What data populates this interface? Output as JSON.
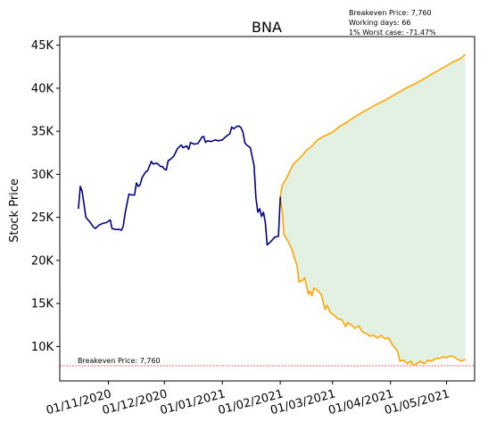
{
  "chart_data": {
    "type": "line",
    "title": "BNA",
    "ylabel": "Stock Price",
    "xlabel": "",
    "annotation_lines": [
      "Breakeven Price: 7,760",
      "Working days: 66",
      "1% Worst case: -71.47%"
    ],
    "breakeven": {
      "value": 7760,
      "label": "Breakeven Price: 7,760",
      "color": "#dd3333"
    },
    "ylim": [
      6000,
      46000
    ],
    "y_ticks": [
      {
        "value": 10000,
        "label": "10K"
      },
      {
        "value": 15000,
        "label": "15K"
      },
      {
        "value": 20000,
        "label": "20K"
      },
      {
        "value": 25000,
        "label": "25K"
      },
      {
        "value": 30000,
        "label": "30K"
      },
      {
        "value": 35000,
        "label": "35K"
      },
      {
        "value": 40000,
        "label": "40K"
      },
      {
        "value": 45000,
        "label": "45K"
      }
    ],
    "xlim": [
      "2020-10-06",
      "2021-05-16"
    ],
    "x_ticks": [
      {
        "value": "2020-11-01",
        "label": "01/11/2020"
      },
      {
        "value": "2020-12-01",
        "label": "01/12/2020"
      },
      {
        "value": "2021-01-01",
        "label": "01/01/2021"
      },
      {
        "value": "2021-02-01",
        "label": "01/02/2021"
      },
      {
        "value": "2021-03-01",
        "label": "01/03/2021"
      },
      {
        "value": "2021-04-01",
        "label": "01/04/2021"
      },
      {
        "value": "2021-05-01",
        "label": "01/05/2021"
      }
    ],
    "colors": {
      "history": "#00008b",
      "forecast": "#ffa500",
      "band_fill": "#d9ecd9"
    },
    "series": [
      {
        "role": "history",
        "points": [
          [
            "2020-10-16",
            26000
          ],
          [
            "2020-10-17",
            28600
          ],
          [
            "2020-10-18",
            28000
          ],
          [
            "2020-10-20",
            25000
          ],
          [
            "2020-10-22",
            24500
          ],
          [
            "2020-10-24",
            23900
          ],
          [
            "2020-10-25",
            23700
          ],
          [
            "2020-10-27",
            24100
          ],
          [
            "2020-10-29",
            24300
          ],
          [
            "2020-10-31",
            24400
          ],
          [
            "2020-11-02",
            24700
          ],
          [
            "2020-11-03",
            23700
          ],
          [
            "2020-11-05",
            23600
          ],
          [
            "2020-11-07",
            23600
          ],
          [
            "2020-11-08",
            23500
          ],
          [
            "2020-11-09",
            24000
          ],
          [
            "2020-11-10",
            25500
          ],
          [
            "2020-11-12",
            27700
          ],
          [
            "2020-11-14",
            27600
          ],
          [
            "2020-11-15",
            27600
          ],
          [
            "2020-11-16",
            29000
          ],
          [
            "2020-11-17",
            28600
          ],
          [
            "2020-11-18",
            28800
          ],
          [
            "2020-11-19",
            29600
          ],
          [
            "2020-11-21",
            30300
          ],
          [
            "2020-11-22",
            30400
          ],
          [
            "2020-11-24",
            31500
          ],
          [
            "2020-11-25",
            31200
          ],
          [
            "2020-11-27",
            31300
          ],
          [
            "2020-11-29",
            30900
          ],
          [
            "2020-11-30",
            30900
          ],
          [
            "2020-12-01",
            30600
          ],
          [
            "2020-12-02",
            30500
          ],
          [
            "2020-12-03",
            31600
          ],
          [
            "2020-12-04",
            31700
          ],
          [
            "2020-12-06",
            32100
          ],
          [
            "2020-12-08",
            33000
          ],
          [
            "2020-12-10",
            33400
          ],
          [
            "2020-12-11",
            33100
          ],
          [
            "2020-12-13",
            33300
          ],
          [
            "2020-12-14",
            32900
          ],
          [
            "2020-12-15",
            33700
          ],
          [
            "2020-12-17",
            33500
          ],
          [
            "2020-12-19",
            33600
          ],
          [
            "2020-12-21",
            34300
          ],
          [
            "2020-12-22",
            34400
          ],
          [
            "2020-12-23",
            33700
          ],
          [
            "2020-12-24",
            33900
          ],
          [
            "2020-12-26",
            33800
          ],
          [
            "2020-12-28",
            34000
          ],
          [
            "2020-12-30",
            33900
          ],
          [
            "2021-01-01",
            34000
          ],
          [
            "2021-01-03",
            34400
          ],
          [
            "2021-01-05",
            34700
          ],
          [
            "2021-01-06",
            35500
          ],
          [
            "2021-01-07",
            35300
          ],
          [
            "2021-01-09",
            35600
          ],
          [
            "2021-01-10",
            35600
          ],
          [
            "2021-01-11",
            35400
          ],
          [
            "2021-01-12",
            34900
          ],
          [
            "2021-01-13",
            33700
          ],
          [
            "2021-01-14",
            33400
          ],
          [
            "2021-01-16",
            33100
          ],
          [
            "2021-01-18",
            31000
          ],
          [
            "2021-01-19",
            27200
          ],
          [
            "2021-01-20",
            25600
          ],
          [
            "2021-01-21",
            26000
          ],
          [
            "2021-01-22",
            25100
          ],
          [
            "2021-01-23",
            25600
          ],
          [
            "2021-01-24",
            24400
          ],
          [
            "2021-01-25",
            21800
          ],
          [
            "2021-01-27",
            22200
          ],
          [
            "2021-01-29",
            22700
          ],
          [
            "2021-01-31",
            22800
          ],
          [
            "2021-02-01",
            27400
          ]
        ]
      },
      {
        "role": "forecast_upper",
        "points": [
          [
            "2021-02-01",
            27400
          ],
          [
            "2021-02-02",
            28700
          ],
          [
            "2021-02-04",
            29400
          ],
          [
            "2021-02-06",
            30300
          ],
          [
            "2021-02-08",
            31200
          ],
          [
            "2021-02-10",
            31600
          ],
          [
            "2021-02-12",
            32000
          ],
          [
            "2021-02-15",
            32800
          ],
          [
            "2021-02-18",
            33300
          ],
          [
            "2021-02-21",
            34000
          ],
          [
            "2021-02-25",
            34500
          ],
          [
            "2021-03-01",
            34900
          ],
          [
            "2021-03-05",
            35600
          ],
          [
            "2021-03-09",
            36100
          ],
          [
            "2021-03-13",
            36700
          ],
          [
            "2021-03-17",
            37200
          ],
          [
            "2021-03-21",
            37700
          ],
          [
            "2021-03-25",
            38200
          ],
          [
            "2021-03-29",
            38600
          ],
          [
            "2021-04-02",
            39100
          ],
          [
            "2021-04-06",
            39600
          ],
          [
            "2021-04-10",
            40100
          ],
          [
            "2021-04-14",
            40500
          ],
          [
            "2021-04-18",
            41000
          ],
          [
            "2021-04-22",
            41500
          ],
          [
            "2021-04-26",
            42000
          ],
          [
            "2021-04-30",
            42500
          ],
          [
            "2021-05-04",
            43000
          ],
          [
            "2021-05-08",
            43400
          ],
          [
            "2021-05-11",
            43900
          ]
        ]
      },
      {
        "role": "forecast_lower",
        "points": [
          [
            "2021-02-01",
            27400
          ],
          [
            "2021-02-02",
            25700
          ],
          [
            "2021-02-03",
            23000
          ],
          [
            "2021-02-05",
            22300
          ],
          [
            "2021-02-07",
            21400
          ],
          [
            "2021-02-09",
            20000
          ],
          [
            "2021-02-10",
            19400
          ],
          [
            "2021-02-11",
            17500
          ],
          [
            "2021-02-13",
            17700
          ],
          [
            "2021-02-14",
            18000
          ],
          [
            "2021-02-16",
            16100
          ],
          [
            "2021-02-17",
            16400
          ],
          [
            "2021-02-18",
            15900
          ],
          [
            "2021-02-19",
            16800
          ],
          [
            "2021-02-21",
            16500
          ],
          [
            "2021-02-23",
            16000
          ],
          [
            "2021-02-25",
            14300
          ],
          [
            "2021-02-26",
            14800
          ],
          [
            "2021-02-28",
            13900
          ],
          [
            "2021-03-02",
            13600
          ],
          [
            "2021-03-04",
            13200
          ],
          [
            "2021-03-06",
            13100
          ],
          [
            "2021-03-08",
            12300
          ],
          [
            "2021-03-09",
            12800
          ],
          [
            "2021-03-11",
            12500
          ],
          [
            "2021-03-13",
            12100
          ],
          [
            "2021-03-15",
            12400
          ],
          [
            "2021-03-17",
            11700
          ],
          [
            "2021-03-19",
            11500
          ],
          [
            "2021-03-21",
            11200
          ],
          [
            "2021-03-23",
            11300
          ],
          [
            "2021-03-25",
            11000
          ],
          [
            "2021-03-27",
            11300
          ],
          [
            "2021-03-29",
            10900
          ],
          [
            "2021-03-31",
            11000
          ],
          [
            "2021-04-02",
            10200
          ],
          [
            "2021-04-04",
            9700
          ],
          [
            "2021-04-05",
            9300
          ],
          [
            "2021-04-06",
            8300
          ],
          [
            "2021-04-08",
            8400
          ],
          [
            "2021-04-10",
            8000
          ],
          [
            "2021-04-12",
            8300
          ],
          [
            "2021-04-13",
            7800
          ],
          [
            "2021-04-15",
            8000
          ],
          [
            "2021-04-17",
            8300
          ],
          [
            "2021-04-19",
            8000
          ],
          [
            "2021-04-21",
            8400
          ],
          [
            "2021-04-23",
            8300
          ],
          [
            "2021-04-25",
            8600
          ],
          [
            "2021-04-27",
            8600
          ],
          [
            "2021-04-29",
            8800
          ],
          [
            "2021-05-01",
            8700
          ],
          [
            "2021-05-03",
            8900
          ],
          [
            "2021-05-05",
            8800
          ],
          [
            "2021-05-07",
            8500
          ],
          [
            "2021-05-09",
            8300
          ],
          [
            "2021-05-11",
            8500
          ]
        ]
      }
    ]
  }
}
